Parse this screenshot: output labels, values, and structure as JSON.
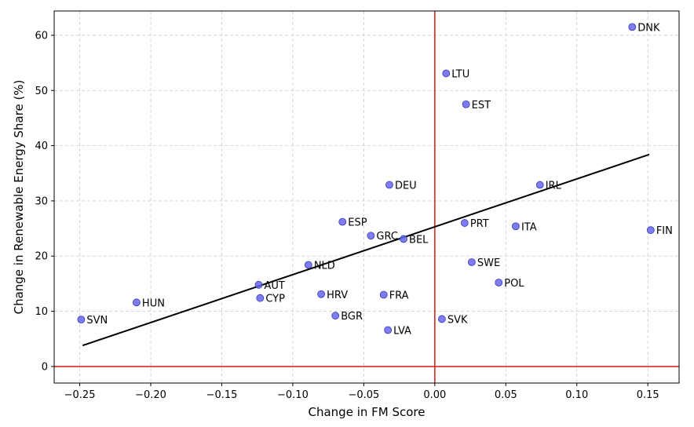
{
  "chart_data": {
    "type": "scatter",
    "title": "",
    "xlabel": "Change in FM Score",
    "ylabel": "Change in Renewable Energy Share (%)",
    "xlim": [
      -0.268,
      0.172
    ],
    "ylim": [
      -3.0,
      64.4
    ],
    "xticks": [
      -0.25,
      -0.2,
      -0.15,
      -0.1,
      -0.05,
      0.0,
      0.05,
      0.1,
      0.15
    ],
    "xtick_labels": [
      "−0.25",
      "−0.20",
      "−0.15",
      "−0.10",
      "−0.05",
      "0.00",
      "0.05",
      "0.10",
      "0.15"
    ],
    "yticks": [
      0,
      10,
      20,
      30,
      40,
      50,
      60
    ],
    "ytick_labels": [
      "0",
      "10",
      "20",
      "30",
      "40",
      "50",
      "60"
    ],
    "grid": true,
    "legend": "none",
    "colors": {
      "points": "#6666ee",
      "point_edge": "#3a3ab0",
      "reference_lines": "#d62728",
      "trend_line": "#000000",
      "grid": "#cccccc"
    },
    "reference_lines": {
      "x": 0,
      "y": 0
    },
    "trend_line": {
      "x": [
        -0.248,
        0.151
      ],
      "y": [
        3.8,
        38.4
      ]
    },
    "points": [
      {
        "label": "DNK",
        "x": 0.139,
        "y": 61.5
      },
      {
        "label": "LTU",
        "x": 0.008,
        "y": 53.1
      },
      {
        "label": "EST",
        "x": 0.022,
        "y": 47.5
      },
      {
        "label": "DEU",
        "x": -0.032,
        "y": 32.9
      },
      {
        "label": "IRL",
        "x": 0.074,
        "y": 32.9
      },
      {
        "label": "ESP",
        "x": -0.065,
        "y": 26.2
      },
      {
        "label": "PRT",
        "x": 0.021,
        "y": 26.0
      },
      {
        "label": "ITA",
        "x": 0.057,
        "y": 25.4
      },
      {
        "label": "FIN",
        "x": 0.152,
        "y": 24.7
      },
      {
        "label": "GRC",
        "x": -0.045,
        "y": 23.7
      },
      {
        "label": "BEL",
        "x": -0.022,
        "y": 23.1
      },
      {
        "label": "SWE",
        "x": 0.026,
        "y": 18.9
      },
      {
        "label": "NLD",
        "x": -0.089,
        "y": 18.4
      },
      {
        "label": "POL",
        "x": 0.045,
        "y": 15.2
      },
      {
        "label": "AUT",
        "x": -0.124,
        "y": 14.8
      },
      {
        "label": "HRV",
        "x": -0.08,
        "y": 13.1
      },
      {
        "label": "FRA",
        "x": -0.036,
        "y": 13.0
      },
      {
        "label": "CYP",
        "x": -0.123,
        "y": 12.4
      },
      {
        "label": "HUN",
        "x": -0.21,
        "y": 11.6
      },
      {
        "label": "BGR",
        "x": -0.07,
        "y": 9.2
      },
      {
        "label": "SVK",
        "x": 0.005,
        "y": 8.6
      },
      {
        "label": "SVN",
        "x": -0.249,
        "y": 8.5
      },
      {
        "label": "LVA",
        "x": -0.033,
        "y": 6.6
      }
    ]
  }
}
